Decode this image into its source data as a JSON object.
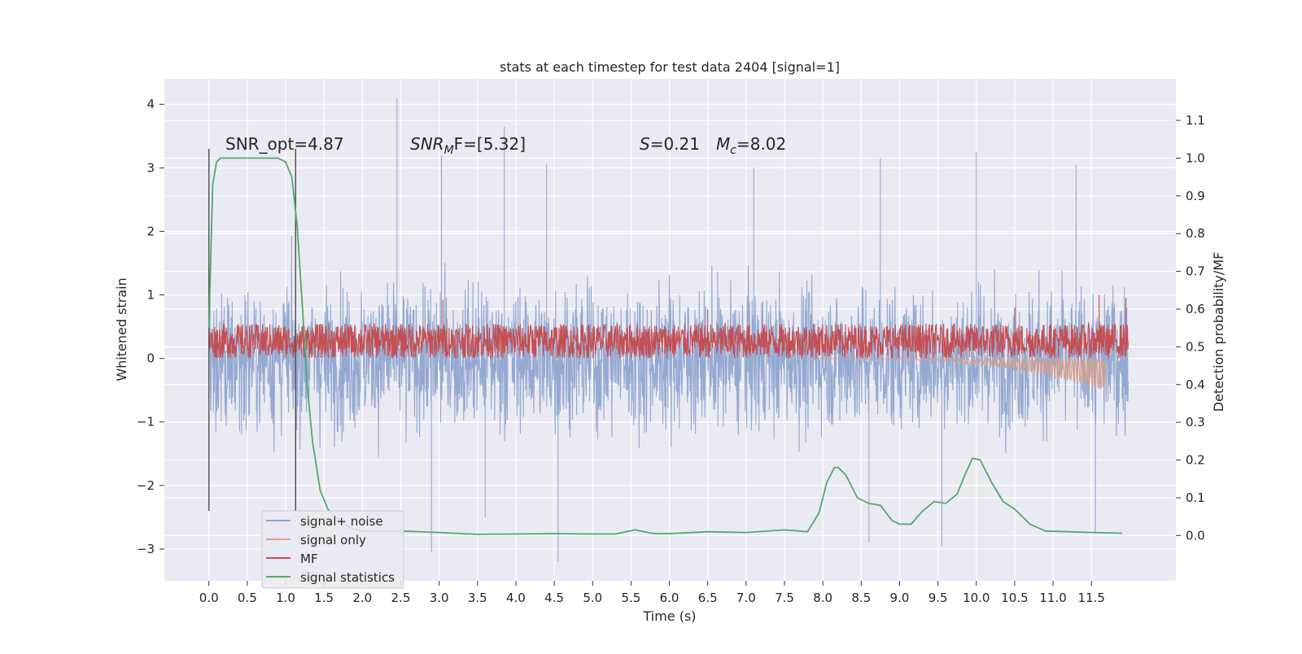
{
  "chart_data": {
    "type": "line",
    "title": "stats at each timestep for test data 2404 [signal=1]",
    "xlabel": "Time (s)",
    "ylabel": "Whitened strain",
    "y2label": "Detection probability/MF",
    "xlim": [
      -0.58,
      12.6
    ],
    "ylim": [
      -3.5,
      4.4
    ],
    "y2lim": [
      -0.12,
      1.21
    ],
    "xticks": [
      "0.0",
      "0.5",
      "1.0",
      "1.5",
      "2.0",
      "2.5",
      "3.0",
      "3.5",
      "4.0",
      "4.5",
      "5.0",
      "5.5",
      "6.0",
      "6.5",
      "7.0",
      "7.5",
      "8.0",
      "8.5",
      "9.0",
      "9.5",
      "10.0",
      "10.5",
      "11.0",
      "11.5"
    ],
    "yticks": [
      "4",
      "3",
      "2",
      "1",
      "0",
      "−1",
      "−2",
      "−3"
    ],
    "y2ticks": [
      "1.1",
      "1.0",
      "0.9",
      "0.8",
      "0.7",
      "0.6",
      "0.5",
      "0.4",
      "0.3",
      "0.2",
      "0.1",
      "0.0"
    ],
    "grid": true,
    "legend_position": "lower-left",
    "annotations": {
      "snr_opt": "SNR_opt=4.87",
      "snr_mf_name": "SNR",
      "snr_mf_sub": "M",
      "snr_mf_rest": "F=[5.32]",
      "s_name": "S",
      "s_rest": "=0.21",
      "mc_name": "M",
      "mc_sub": "c",
      "mc_rest": "=8.02"
    },
    "vlines": {
      "x": [
        0.0,
        1.13
      ],
      "y_range": [
        -2.4,
        3.3
      ],
      "color": "#555555"
    },
    "series": [
      {
        "name": "signal+ noise",
        "color": "#8fa5cf",
        "t_range": [
          0.0,
          11.98
        ],
        "typical_envelope": [
          -1.7,
          1.7
        ],
        "spikes": [
          {
            "x": 2.45,
            "y": 4.1
          },
          {
            "x": 3.03,
            "y": 3.2
          },
          {
            "x": 3.85,
            "y": 3.65
          },
          {
            "x": 4.4,
            "y": 3.05
          },
          {
            "x": 10.0,
            "y": 3.25
          },
          {
            "x": 11.3,
            "y": 3.05
          },
          {
            "x": 8.75,
            "y": 3.15
          },
          {
            "x": 7.1,
            "y": 3.0
          },
          {
            "x": 4.55,
            "y": -3.2
          },
          {
            "x": 2.9,
            "y": -3.05
          },
          {
            "x": 11.55,
            "y": -2.75
          },
          {
            "x": 9.55,
            "y": -2.95
          },
          {
            "x": 3.6,
            "y": -2.5
          },
          {
            "x": 8.6,
            "y": -2.9
          }
        ]
      },
      {
        "name": "signal only",
        "color": "#dd9f86",
        "t_range": [
          7.8,
          11.68
        ],
        "end_value": -0.5
      },
      {
        "name": "MF",
        "color": "#c44e52",
        "t_range": [
          0.0,
          11.98
        ],
        "typical_envelope": [
          0.0,
          0.55
        ],
        "spikes": [
          {
            "x": 3.05,
            "y": 0.92
          },
          {
            "x": 11.6,
            "y": 1.0
          },
          {
            "x": 10.5,
            "y": 0.8
          },
          {
            "x": 6.5,
            "y": 0.78
          },
          {
            "x": 0.0,
            "y": -0.2
          },
          {
            "x": 11.95,
            "y": 0.95
          }
        ]
      },
      {
        "name": "signal statistics",
        "color": "#55a868",
        "axis": "right",
        "x": [
          0.0,
          0.05,
          0.1,
          0.15,
          0.25,
          0.5,
          0.8,
          0.9,
          1.0,
          1.08,
          1.15,
          1.22,
          1.28,
          1.35,
          1.45,
          1.55,
          1.7,
          1.85,
          2.0,
          2.2,
          2.5,
          3.0,
          3.5,
          4.0,
          4.5,
          5.0,
          5.3,
          5.55,
          5.8,
          6.0,
          6.5,
          7.0,
          7.5,
          7.8,
          7.95,
          8.05,
          8.15,
          8.2,
          8.3,
          8.45,
          8.6,
          8.75,
          8.9,
          9.0,
          9.15,
          9.3,
          9.45,
          9.6,
          9.75,
          9.85,
          9.95,
          10.05,
          10.2,
          10.35,
          10.5,
          10.7,
          10.9,
          11.2,
          11.5,
          11.9
        ],
        "y": [
          0.55,
          0.93,
          0.99,
          1.0,
          1.0,
          1.0,
          1.0,
          1.0,
          0.99,
          0.95,
          0.82,
          0.6,
          0.4,
          0.25,
          0.12,
          0.07,
          0.04,
          0.02,
          0.012,
          0.01,
          0.012,
          0.008,
          0.003,
          0.004,
          0.005,
          0.004,
          0.004,
          0.015,
          0.005,
          0.005,
          0.01,
          0.008,
          0.015,
          0.01,
          0.06,
          0.14,
          0.18,
          0.18,
          0.16,
          0.1,
          0.085,
          0.08,
          0.04,
          0.03,
          0.03,
          0.065,
          0.09,
          0.085,
          0.11,
          0.16,
          0.205,
          0.2,
          0.14,
          0.09,
          0.07,
          0.03,
          0.012,
          0.01,
          0.008,
          0.006
        ]
      }
    ]
  }
}
